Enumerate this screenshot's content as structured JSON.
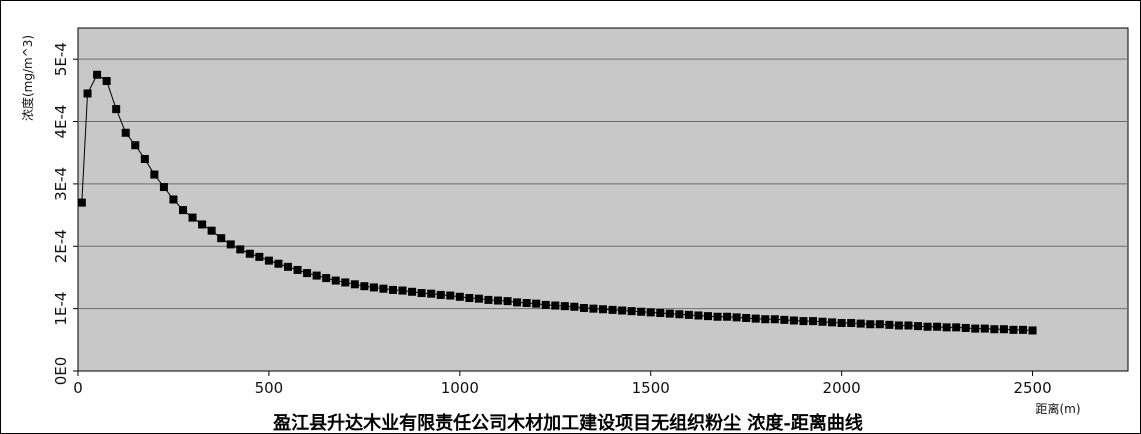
{
  "chart_data": {
    "type": "line",
    "title": "盈江县升达木业有限责任公司木材加工建设项目无组织粉尘 浓度-距离曲线",
    "xlabel": "距离(m)",
    "ylabel": "浓度(mg/m^3)",
    "xlim": [
      0,
      2750
    ],
    "ylim": [
      0,
      0.00055
    ],
    "x_ticks": [
      0,
      500,
      1000,
      1500,
      2000,
      2500
    ],
    "x_tick_labels": [
      "0",
      "500",
      "1000",
      "1500",
      "2000",
      "2500"
    ],
    "y_ticks": [
      0,
      0.0001,
      0.0002,
      0.0003,
      0.0004,
      0.0005
    ],
    "y_tick_labels": [
      "0E0",
      "1E-4",
      "2E-4",
      "3E-4",
      "4E-4",
      "5E-4"
    ],
    "grid": true,
    "legend": "none",
    "background_color": "#c8c8c8",
    "series_color": "#000000",
    "series": [
      {
        "marker": "square",
        "x": [
          10,
          25,
          50,
          75,
          100,
          125,
          150,
          175,
          200,
          225,
          250,
          275,
          300,
          325,
          350,
          375,
          400,
          425,
          450,
          475,
          500,
          525,
          550,
          575,
          600,
          625,
          650,
          675,
          700,
          725,
          750,
          775,
          800,
          825,
          850,
          875,
          900,
          925,
          950,
          975,
          1000,
          1025,
          1050,
          1075,
          1100,
          1125,
          1150,
          1175,
          1200,
          1225,
          1250,
          1275,
          1300,
          1325,
          1350,
          1375,
          1400,
          1425,
          1450,
          1475,
          1500,
          1525,
          1550,
          1575,
          1600,
          1625,
          1650,
          1675,
          1700,
          1725,
          1750,
          1775,
          1800,
          1825,
          1850,
          1875,
          1900,
          1925,
          1950,
          1975,
          2000,
          2025,
          2050,
          2075,
          2100,
          2125,
          2150,
          2175,
          2200,
          2225,
          2250,
          2275,
          2300,
          2325,
          2350,
          2375,
          2400,
          2425,
          2450,
          2475,
          2500
        ],
        "y": [
          0.00027,
          0.000445,
          0.000475,
          0.000465,
          0.00042,
          0.000382,
          0.000362,
          0.00034,
          0.000315,
          0.000295,
          0.000275,
          0.000258,
          0.000246,
          0.000235,
          0.000225,
          0.000213,
          0.000203,
          0.000195,
          0.000188,
          0.000183,
          0.000177,
          0.000172,
          0.000167,
          0.000162,
          0.000157,
          0.000153,
          0.000149,
          0.000145,
          0.000142,
          0.000139,
          0.000136,
          0.000134,
          0.000132,
          0.00013,
          0.000129,
          0.000127,
          0.000125,
          0.000124,
          0.000122,
          0.000121,
          0.000119,
          0.000117,
          0.000116,
          0.000114,
          0.000113,
          0.000112,
          0.00011,
          0.000109,
          0.000108,
          0.000106,
          0.000105,
          0.000104,
          0.000103,
          0.000101,
          0.0001,
          9.9e-05,
          9.8e-05,
          9.7e-05,
          9.6e-05,
          9.5e-05,
          9.4e-05,
          9.3e-05,
          9.2e-05,
          9.1e-05,
          9e-05,
          8.9e-05,
          8.8e-05,
          8.7e-05,
          8.7e-05,
          8.6e-05,
          8.5e-05,
          8.4e-05,
          8.3e-05,
          8.3e-05,
          8.2e-05,
          8.1e-05,
          8e-05,
          8e-05,
          7.9e-05,
          7.8e-05,
          7.7e-05,
          7.7e-05,
          7.6e-05,
          7.5e-05,
          7.5e-05,
          7.4e-05,
          7.3e-05,
          7.3e-05,
          7.2e-05,
          7.1e-05,
          7.1e-05,
          7e-05,
          7e-05,
          6.9e-05,
          6.8e-05,
          6.8e-05,
          6.7e-05,
          6.7e-05,
          6.6e-05,
          6.6e-05,
          6.5e-05
        ]
      }
    ]
  }
}
